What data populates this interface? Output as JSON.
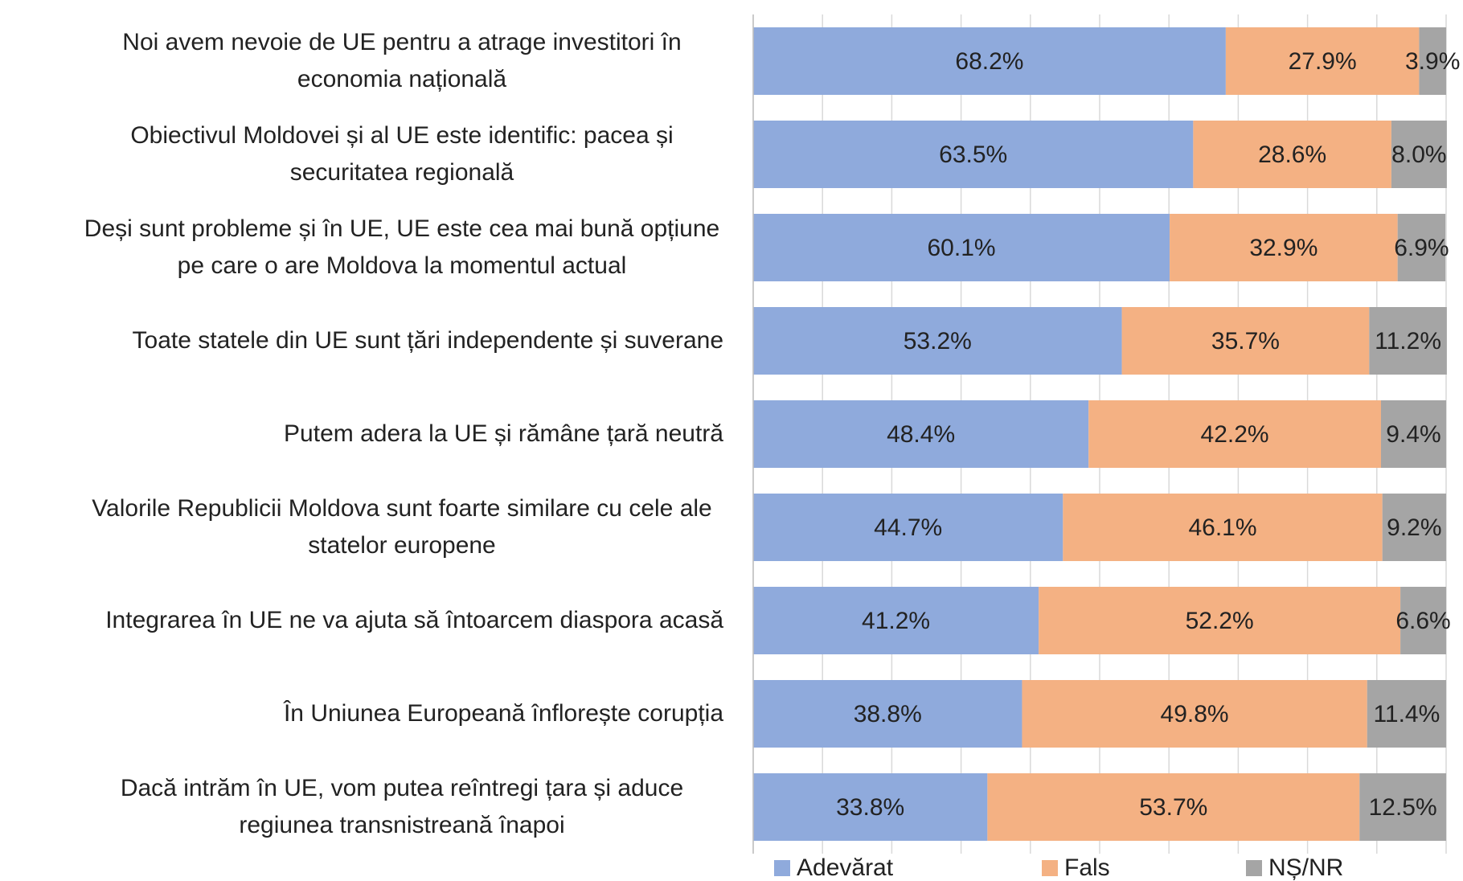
{
  "chart_data": {
    "type": "stacked_bar_horizontal",
    "categories": [
      "Noi avem nevoie de UE pentru a atrage investitori în economia națională",
      "Obiectivul Moldovei și al UE este identific: pacea și securitatea regională",
      "Deși sunt probleme și în UE, UE este cea mai bună opțiune pe care o are Moldova la momentul actual",
      "Toate statele din UE sunt țări independente și suverane",
      "Putem adera la UE și rămâne țară neutră",
      "Valorile Republicii Moldova sunt foarte similare cu cele ale statelor europene",
      "Integrarea în UE ne va ajuta să întoarcem diaspora acasă",
      "În Uniunea Europeană înflorește corupția",
      "Dacă intrăm în UE, vom putea reîntregi țara și aduce regiunea transnistreană înapoi"
    ],
    "series": [
      {
        "name": "Adevărat",
        "color": "#8faadc",
        "values": [
          68.2,
          63.5,
          60.1,
          53.2,
          48.4,
          44.7,
          41.2,
          38.8,
          33.8
        ],
        "value_labels": [
          "68.2%",
          "63.5%",
          "60.1%",
          "53.2%",
          "48.4%",
          "44.7%",
          "41.2%",
          "38.8%",
          "33.8%"
        ]
      },
      {
        "name": "Fals",
        "color": "#f4b183",
        "values": [
          27.9,
          28.6,
          32.9,
          35.7,
          42.2,
          46.1,
          52.2,
          49.8,
          53.7
        ],
        "value_labels": [
          "27.9%",
          "28.6%",
          "32.9%",
          "35.7%",
          "42.2%",
          "46.1%",
          "52.2%",
          "49.8%",
          "53.7%"
        ]
      },
      {
        "name": "NȘ/NR",
        "color": "#a5a5a5",
        "values": [
          3.9,
          8.0,
          6.9,
          11.2,
          9.4,
          9.2,
          6.6,
          11.4,
          12.5
        ],
        "value_labels": [
          "3.9%",
          "8.0%",
          "6.9%",
          "11.2%",
          "9.4%",
          "9.2%",
          "6.6%",
          "11.4%",
          "12.5%"
        ]
      }
    ],
    "xlim": [
      0,
      100
    ],
    "xticks": [
      0,
      10,
      20,
      30,
      40,
      50,
      60,
      70,
      80,
      90,
      100
    ],
    "grid": true,
    "legend": "bottom"
  }
}
